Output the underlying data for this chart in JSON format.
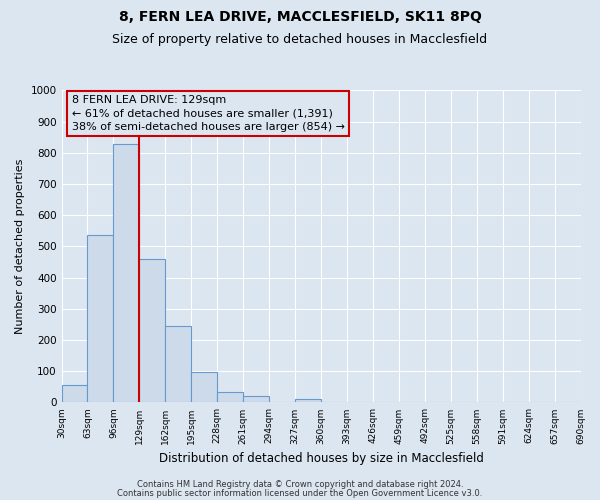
{
  "title1": "8, FERN LEA DRIVE, MACCLESFIELD, SK11 8PQ",
  "title2": "Size of property relative to detached houses in Macclesfield",
  "xlabel": "Distribution of detached houses by size in Macclesfield",
  "ylabel": "Number of detached properties",
  "bar_values": [
    55,
    538,
    830,
    460,
    245,
    97,
    35,
    20,
    0,
    10,
    0,
    0,
    0,
    0,
    0,
    0,
    0,
    0,
    0,
    0
  ],
  "bin_labels": [
    "30sqm",
    "63sqm",
    "96sqm",
    "129sqm",
    "162sqm",
    "195sqm",
    "228sqm",
    "261sqm",
    "294sqm",
    "327sqm",
    "360sqm",
    "393sqm",
    "426sqm",
    "459sqm",
    "492sqm",
    "525sqm",
    "558sqm",
    "591sqm",
    "624sqm",
    "657sqm",
    "690sqm"
  ],
  "bar_color": "#cddaea",
  "bar_edge_color": "#6699cc",
  "vline_x": 3,
  "vline_color": "#cc0000",
  "annotation_line1": "8 FERN LEA DRIVE: 129sqm",
  "annotation_line2": "← 61% of detached houses are smaller (1,391)",
  "annotation_line3": "38% of semi-detached houses are larger (854) →",
  "annotation_box_color": "#cc0000",
  "annotation_text_fontsize": 8,
  "ylim": [
    0,
    1000
  ],
  "yticks": [
    0,
    100,
    200,
    300,
    400,
    500,
    600,
    700,
    800,
    900,
    1000
  ],
  "plot_bg_color": "#dce6f1",
  "fig_bg_color": "#dce6f1",
  "footer1": "Contains HM Land Registry data © Crown copyright and database right 2024.",
  "footer2": "Contains public sector information licensed under the Open Government Licence v3.0.",
  "title1_fontsize": 10,
  "title2_fontsize": 9,
  "xlabel_fontsize": 8.5,
  "ylabel_fontsize": 8,
  "grid_color": "#ffffff"
}
